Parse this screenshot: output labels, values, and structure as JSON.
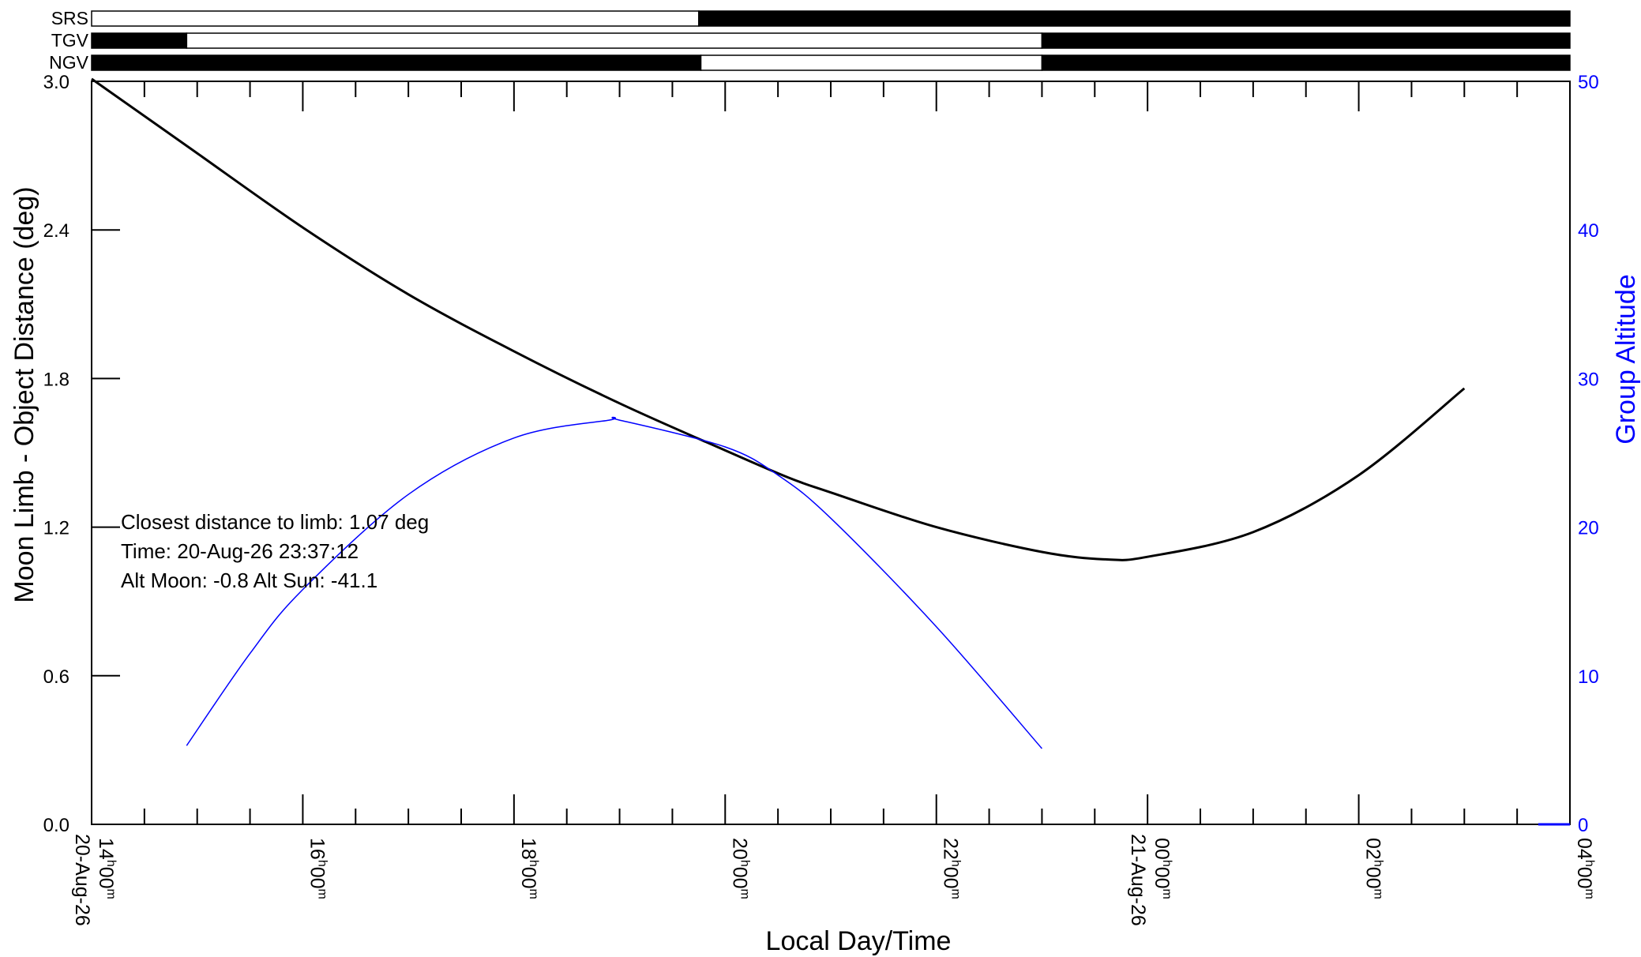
{
  "chart_data": {
    "type": "line",
    "title": "",
    "xlabel": "Local Day/Time",
    "ylabel": "Moon Limb - Object Distance (deg)",
    "y2label": "Group Altitude",
    "x_range_hours": [
      14,
      28
    ],
    "ylim": [
      0.0,
      3.0
    ],
    "y2lim": [
      0,
      50
    ],
    "grid": false,
    "y_ticks": [
      "0.0",
      "0.6",
      "1.2",
      "1.8",
      "2.4",
      "3.0"
    ],
    "y2_ticks": [
      "0",
      "10",
      "20",
      "30",
      "40",
      "50"
    ],
    "x_tick_labels": [
      {
        "x": 14,
        "hh": "14",
        "mm": "00"
      },
      {
        "x": 16,
        "hh": "16",
        "mm": "00"
      },
      {
        "x": 18,
        "hh": "18",
        "mm": "00"
      },
      {
        "x": 20,
        "hh": "20",
        "mm": "00"
      },
      {
        "x": 22,
        "hh": "22",
        "mm": "00"
      },
      {
        "x": 24,
        "hh": "00",
        "mm": "00"
      },
      {
        "x": 26,
        "hh": "02",
        "mm": "00"
      },
      {
        "x": 28,
        "hh": "04",
        "mm": "00"
      }
    ],
    "date_labels": [
      {
        "x": 14,
        "text": "20-Aug-26"
      },
      {
        "x": 24,
        "text": "21-Aug-26"
      }
    ],
    "time_superscripts": {
      "h": "h",
      "m": "m"
    },
    "series": [
      {
        "axis": "left",
        "color": "#000000",
        "x": [
          14.0,
          14.9,
          16.0,
          17.0,
          18.0,
          19.0,
          20.0,
          20.6,
          21.0,
          22.0,
          23.0,
          23.6,
          24.0,
          25.0,
          26.0,
          27.0
        ],
        "values": [
          3.01,
          2.74,
          2.41,
          2.14,
          1.91,
          1.7,
          1.51,
          1.4,
          1.34,
          1.2,
          1.1,
          1.07,
          1.08,
          1.18,
          1.41,
          1.76
        ]
      },
      {
        "axis": "right",
        "color": "#0000ff",
        "x": [
          14.9,
          15.5,
          16.0,
          17.0,
          18.0,
          18.9,
          19.0,
          20.0,
          20.5,
          21.0,
          22.0,
          23.0
        ],
        "values": [
          5.3,
          11.5,
          15.8,
          22.2,
          26.0,
          27.2,
          27.2,
          25.4,
          23.5,
          20.6,
          13.3,
          5.1
        ]
      },
      {
        "axis": "right",
        "color": "#0000ff",
        "x": [
          27.7,
          28.0
        ],
        "values": [
          0,
          0
        ]
      }
    ],
    "bars": [
      {
        "name": "SRS",
        "segments": [
          {
            "from": 14.0,
            "to": 19.75,
            "state": "white"
          },
          {
            "from": 19.75,
            "to": 28.0,
            "state": "black"
          }
        ]
      },
      {
        "name": "TGV",
        "segments": [
          {
            "from": 14.0,
            "to": 14.9,
            "state": "black"
          },
          {
            "from": 14.9,
            "to": 23.0,
            "state": "white"
          },
          {
            "from": 23.0,
            "to": 28.0,
            "state": "black"
          }
        ]
      },
      {
        "name": "NGV",
        "segments": [
          {
            "from": 14.0,
            "to": 19.77,
            "state": "black"
          },
          {
            "from": 19.77,
            "to": 23.0,
            "state": "white"
          },
          {
            "from": 23.0,
            "to": 28.0,
            "state": "black"
          }
        ]
      }
    ],
    "annotation": [
      "Closest distance to limb: 1.07 deg",
      "Time: 20-Aug-26  23:37:12",
      "Alt Moon:  -0.8  Alt Sun: -41.1"
    ]
  }
}
